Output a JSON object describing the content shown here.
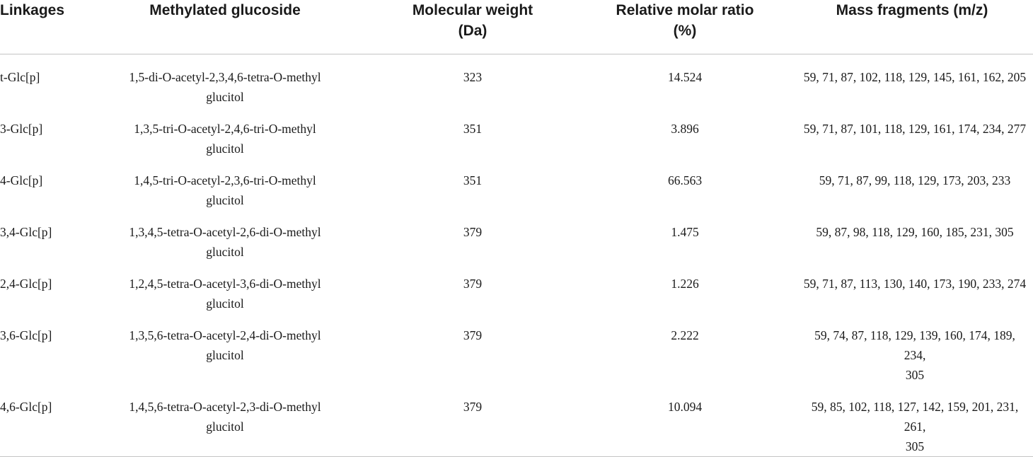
{
  "columns": [
    "Linkages",
    "Methylated glucoside",
    "Molecular weight (Da)",
    "Relative molar ratio (%)",
    "Mass fragments (m/z)"
  ],
  "header_lines": {
    "linkages": "Linkages",
    "glucoside": "Methylated glucoside",
    "mw_1": "Molecular weight",
    "mw_2": "(Da)",
    "ratio_1": "Relative molar ratio",
    "ratio_2": "(%)",
    "frag": "Mass fragments (m/z)"
  },
  "rows": [
    {
      "linkage": "t-Glc[p]",
      "glucoside_1": "1,5-di-O-acetyl-2,3,4,6-tetra-O-methyl",
      "glucoside_2": "glucitol",
      "mw": "323",
      "ratio": "14.524",
      "frag_1": "59, 71, 87, 102, 118, 129, 145, 161, 162, 205",
      "frag_2": ""
    },
    {
      "linkage": "3-Glc[p]",
      "glucoside_1": "1,3,5-tri-O-acetyl-2,4,6-tri-O-methyl",
      "glucoside_2": "glucitol",
      "mw": "351",
      "ratio": "3.896",
      "frag_1": "59, 71, 87, 101, 118, 129, 161, 174, 234, 277",
      "frag_2": ""
    },
    {
      "linkage": "4-Glc[p]",
      "glucoside_1": "1,4,5-tri-O-acetyl-2,3,6-tri-O-methyl",
      "glucoside_2": "glucitol",
      "mw": "351",
      "ratio": "66.563",
      "frag_1": "59, 71, 87, 99, 118, 129, 173, 203, 233",
      "frag_2": ""
    },
    {
      "linkage": "3,4-Glc[p]",
      "glucoside_1": "1,3,4,5-tetra-O-acetyl-2,6-di-O-methyl",
      "glucoside_2": "glucitol",
      "mw": "379",
      "ratio": "1.475",
      "frag_1": "59, 87, 98, 118, 129, 160, 185, 231, 305",
      "frag_2": ""
    },
    {
      "linkage": "2,4-Glc[p]",
      "glucoside_1": "1,2,4,5-tetra-O-acetyl-3,6-di-O-methyl",
      "glucoside_2": "glucitol",
      "mw": "379",
      "ratio": "1.226",
      "frag_1": "59, 71, 87, 113, 130, 140, 173, 190, 233, 274",
      "frag_2": ""
    },
    {
      "linkage": "3,6-Glc[p]",
      "glucoside_1": "1,3,5,6-tetra-O-acetyl-2,4-di-O-methyl",
      "glucoside_2": "glucitol",
      "mw": "379",
      "ratio": "2.222",
      "frag_1": "59, 74, 87, 118, 129, 139, 160, 174, 189, 234,",
      "frag_2": "305"
    },
    {
      "linkage": "4,6-Glc[p]",
      "glucoside_1": "1,4,5,6-tetra-O-acetyl-2,3-di-O-methyl",
      "glucoside_2": "glucitol",
      "mw": "379",
      "ratio": "10.094",
      "frag_1": "59, 85, 102, 118, 127, 142, 159, 201, 231, 261,",
      "frag_2": "305"
    }
  ]
}
